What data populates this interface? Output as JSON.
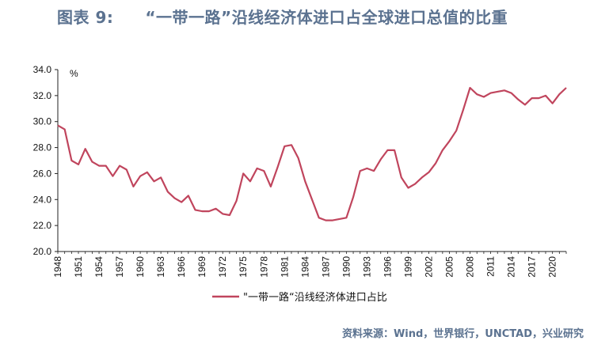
{
  "title": {
    "figure_number": "图表 9:",
    "text": "“一带一路”沿线经济体进口占全球进口总值的比重"
  },
  "source": "资料来源：Wind，世界银行，UNCTAD，兴业研究",
  "colors": {
    "line": "#c0455d",
    "title": "#5b7290",
    "axis": "#222222"
  },
  "chart_data": {
    "type": "line",
    "title": "“一带一路”沿线经济体进口占全球进口总值的比重",
    "ylabel": "%",
    "xlabel": "",
    "ylim": [
      20.0,
      34.0
    ],
    "yticks": [
      "20.0",
      "22.0",
      "24.0",
      "26.0",
      "28.0",
      "30.0",
      "32.0",
      "34.0"
    ],
    "xlim": [
      1948,
      2022
    ],
    "xticks": [
      "1948",
      "1951",
      "1954",
      "1957",
      "1960",
      "1963",
      "1966",
      "1969",
      "1972",
      "1975",
      "1978",
      "1981",
      "1984",
      "1987",
      "1990",
      "1993",
      "1996",
      "1999",
      "2002",
      "2005",
      "2008",
      "2011",
      "2014",
      "2017",
      "2020"
    ],
    "grid": false,
    "legend_position": "bottom",
    "series": [
      {
        "name": "\"一带一路“沿线经济体进口占比",
        "x": [
          1948,
          1949,
          1950,
          1951,
          1952,
          1953,
          1954,
          1955,
          1956,
          1957,
          1958,
          1959,
          1960,
          1961,
          1962,
          1963,
          1964,
          1965,
          1966,
          1967,
          1968,
          1969,
          1970,
          1971,
          1972,
          1973,
          1974,
          1975,
          1976,
          1977,
          1978,
          1979,
          1980,
          1981,
          1982,
          1983,
          1984,
          1985,
          1986,
          1987,
          1988,
          1989,
          1990,
          1991,
          1992,
          1993,
          1994,
          1995,
          1996,
          1997,
          1998,
          1999,
          2000,
          2001,
          2002,
          2003,
          2004,
          2005,
          2006,
          2007,
          2008,
          2009,
          2010,
          2011,
          2012,
          2013,
          2014,
          2015,
          2016,
          2017,
          2018,
          2019,
          2020,
          2021,
          2022
        ],
        "values": [
          29.7,
          29.4,
          27.0,
          26.7,
          27.9,
          26.9,
          26.6,
          26.6,
          25.8,
          26.6,
          26.3,
          25.0,
          25.8,
          26.1,
          25.4,
          25.7,
          24.6,
          24.1,
          23.8,
          24.3,
          23.2,
          23.1,
          23.1,
          23.3,
          22.9,
          22.8,
          23.9,
          26.0,
          25.4,
          26.4,
          26.2,
          25.0,
          26.5,
          28.1,
          28.2,
          27.2,
          25.4,
          24.0,
          22.6,
          22.4,
          22.4,
          22.5,
          22.6,
          24.2,
          26.2,
          26.4,
          26.2,
          27.1,
          27.8,
          27.8,
          25.7,
          24.9,
          25.2,
          25.7,
          26.1,
          26.8,
          27.8,
          28.5,
          29.3,
          30.9,
          32.6,
          32.1,
          31.9,
          32.2,
          32.3,
          32.4,
          32.2,
          31.7,
          31.3,
          31.8,
          31.8,
          32.0,
          31.4,
          32.1,
          32.6
        ]
      }
    ]
  }
}
